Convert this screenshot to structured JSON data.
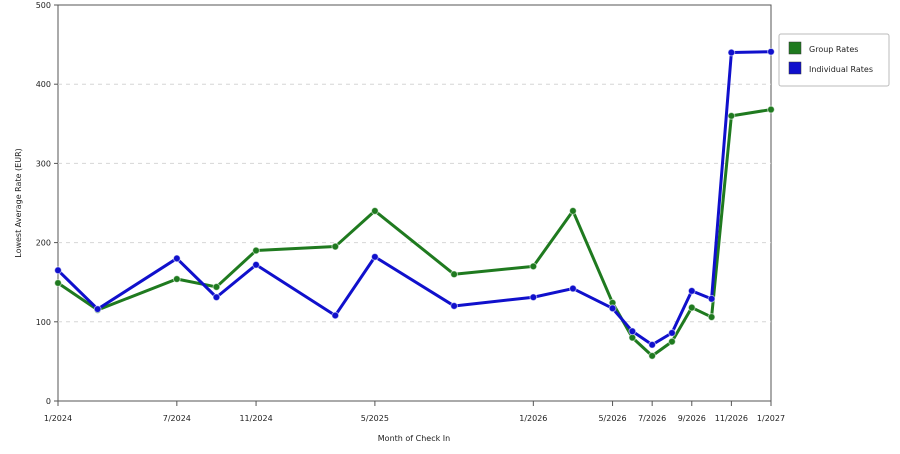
{
  "chart_data": {
    "type": "line",
    "xlabel": "Month of Check In",
    "ylabel": "Lowest Average Rate (EUR)",
    "ylim": [
      0,
      500
    ],
    "yticks": [
      0,
      100,
      200,
      300,
      400,
      500
    ],
    "grid": true,
    "legend_position": "right",
    "x": [
      "1/2024",
      "3/2024",
      "7/2024",
      "9/2024",
      "11/2024",
      "3/2025",
      "5/2025",
      "9/2025",
      "1/2026",
      "3/2026",
      "5/2026",
      "6/2026",
      "7/2026",
      "8/2026",
      "9/2026",
      "10/2026",
      "11/2026",
      "1/2027"
    ],
    "xtick_labels": [
      "1/2024",
      "7/2024",
      "11/2024",
      "5/2025",
      "1/2026",
      "5/2026",
      "7/2026",
      "9/2026",
      "11/2026",
      "1/2027"
    ],
    "series": [
      {
        "name": "Group Rates",
        "color": "#1f7a1f",
        "values": [
          149,
          115,
          154,
          144,
          190,
          195,
          240,
          160,
          170,
          240,
          124,
          80,
          57,
          75,
          118,
          106,
          360,
          368
        ]
      },
      {
        "name": "Individual Rates",
        "color": "#1010cc",
        "values": [
          165,
          116,
          180,
          131,
          172,
          108,
          182,
          120,
          131,
          142,
          117,
          88,
          71,
          86,
          139,
          129,
          440,
          441
        ]
      }
    ]
  }
}
